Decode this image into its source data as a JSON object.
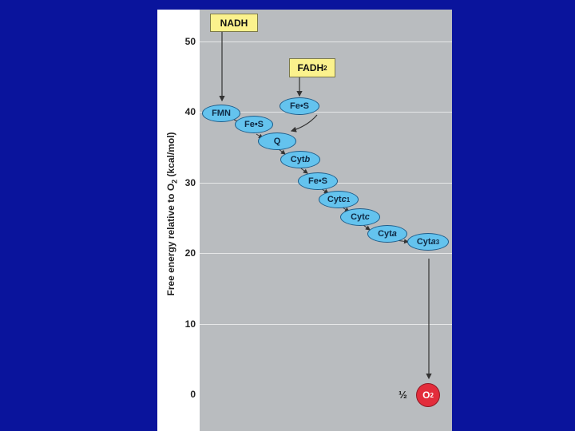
{
  "axis": {
    "ylabel_pre": "Free energy relative to O",
    "ylabel_sub": "2",
    "ylabel_post": " (kcal/mol)",
    "ticks": [
      "50",
      "40",
      "30",
      "20",
      "10",
      "0"
    ]
  },
  "boxes": {
    "nadh": "NADH",
    "fadh_main": "FADH",
    "fadh_sub": "2"
  },
  "carriers": {
    "fmn": "FMN",
    "fes_fadh": "Fe•S",
    "fes_1": "Fe•S",
    "q": "Q",
    "cytb_pre": "Cyt ",
    "cytb_it": "b",
    "fes_2": "Fe•S",
    "cytc1_pre": "Cyt ",
    "cytc1_it": "c",
    "cytc1_sub": "1",
    "cytc_pre": "Cyt ",
    "cytc_it": "c",
    "cyta_pre": "Cyt ",
    "cyta_it": "a",
    "cyta3_pre": "Cyt ",
    "cyta3_it": "a",
    "cyta3_sub": "3"
  },
  "terminal": {
    "half": "½",
    "o2_main": "O",
    "o2_sub": "2"
  },
  "colors": {
    "background": "#0a149c",
    "plot": "#b9bcbf",
    "carrier": "#64c3ee",
    "box": "#fbf28d",
    "oxygen": "#e32c3b"
  }
}
